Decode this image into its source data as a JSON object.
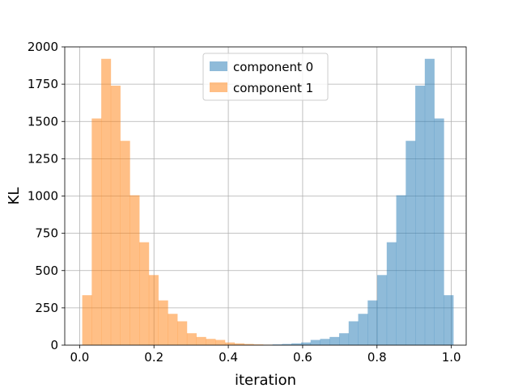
{
  "chart_data": {
    "type": "bar",
    "subtype": "overlaid histogram",
    "title": "",
    "xlabel": "iteration",
    "ylabel": "KL",
    "xlim": [
      -0.04,
      1.04
    ],
    "ylim": [
      0,
      2000
    ],
    "xticks": [
      0.0,
      0.2,
      0.4,
      0.6,
      0.8,
      1.0
    ],
    "xtick_labels": [
      "0.0",
      "0.2",
      "0.4",
      "0.6",
      "0.8",
      "1.0"
    ],
    "yticks": [
      0,
      250,
      500,
      750,
      1000,
      1250,
      1500,
      1750,
      2000
    ],
    "ytick_labels": [
      "0",
      "250",
      "500",
      "750",
      "1000",
      "1250",
      "1500",
      "1750",
      "2000"
    ],
    "grid": true,
    "legend_position": "upper center",
    "bin_edges": [
      0.007,
      0.0326,
      0.0582,
      0.0838,
      0.1094,
      0.135,
      0.1606,
      0.1862,
      0.2118,
      0.2374,
      0.263,
      0.2886,
      0.3142,
      0.3398,
      0.3654,
      0.391,
      0.4166,
      0.4422,
      0.4678,
      0.4934,
      0.519,
      0.5446,
      0.5702,
      0.5958,
      0.6214,
      0.647,
      0.6726,
      0.6982,
      0.7238,
      0.7494,
      0.775,
      0.8006,
      0.8262,
      0.8518,
      0.8774,
      0.903,
      0.9286,
      0.9542,
      0.9798
    ],
    "series": [
      {
        "name": "component 0",
        "color": "#1f77b4",
        "opacity": 0.5,
        "bin_edges": [
          0.4934,
          0.519,
          0.5446,
          0.5702,
          0.5958,
          0.6214,
          0.647,
          0.6726,
          0.6982,
          0.7238,
          0.7494,
          0.775,
          0.8006,
          0.8262,
          0.8518,
          0.8774,
          0.903,
          0.9286,
          0.9542,
          0.9798,
          1.0054
        ],
        "counts": [
          3,
          5,
          8,
          12,
          18,
          35,
          42,
          55,
          80,
          160,
          210,
          300,
          470,
          690,
          1005,
          1370,
          1740,
          1920,
          1520,
          335
        ]
      },
      {
        "name": "component 1",
        "color": "#ff7f0e",
        "opacity": 0.5,
        "bin_edges": [
          0.007,
          0.0326,
          0.0582,
          0.0838,
          0.1094,
          0.135,
          0.1606,
          0.1862,
          0.2118,
          0.2374,
          0.263,
          0.2886,
          0.3142,
          0.3398,
          0.3654,
          0.391,
          0.4166,
          0.4422,
          0.4678,
          0.4934,
          0.519
        ],
        "counts": [
          335,
          1520,
          1920,
          1740,
          1370,
          1005,
          690,
          470,
          300,
          210,
          160,
          80,
          55,
          42,
          35,
          18,
          12,
          8,
          5,
          3
        ]
      }
    ]
  }
}
